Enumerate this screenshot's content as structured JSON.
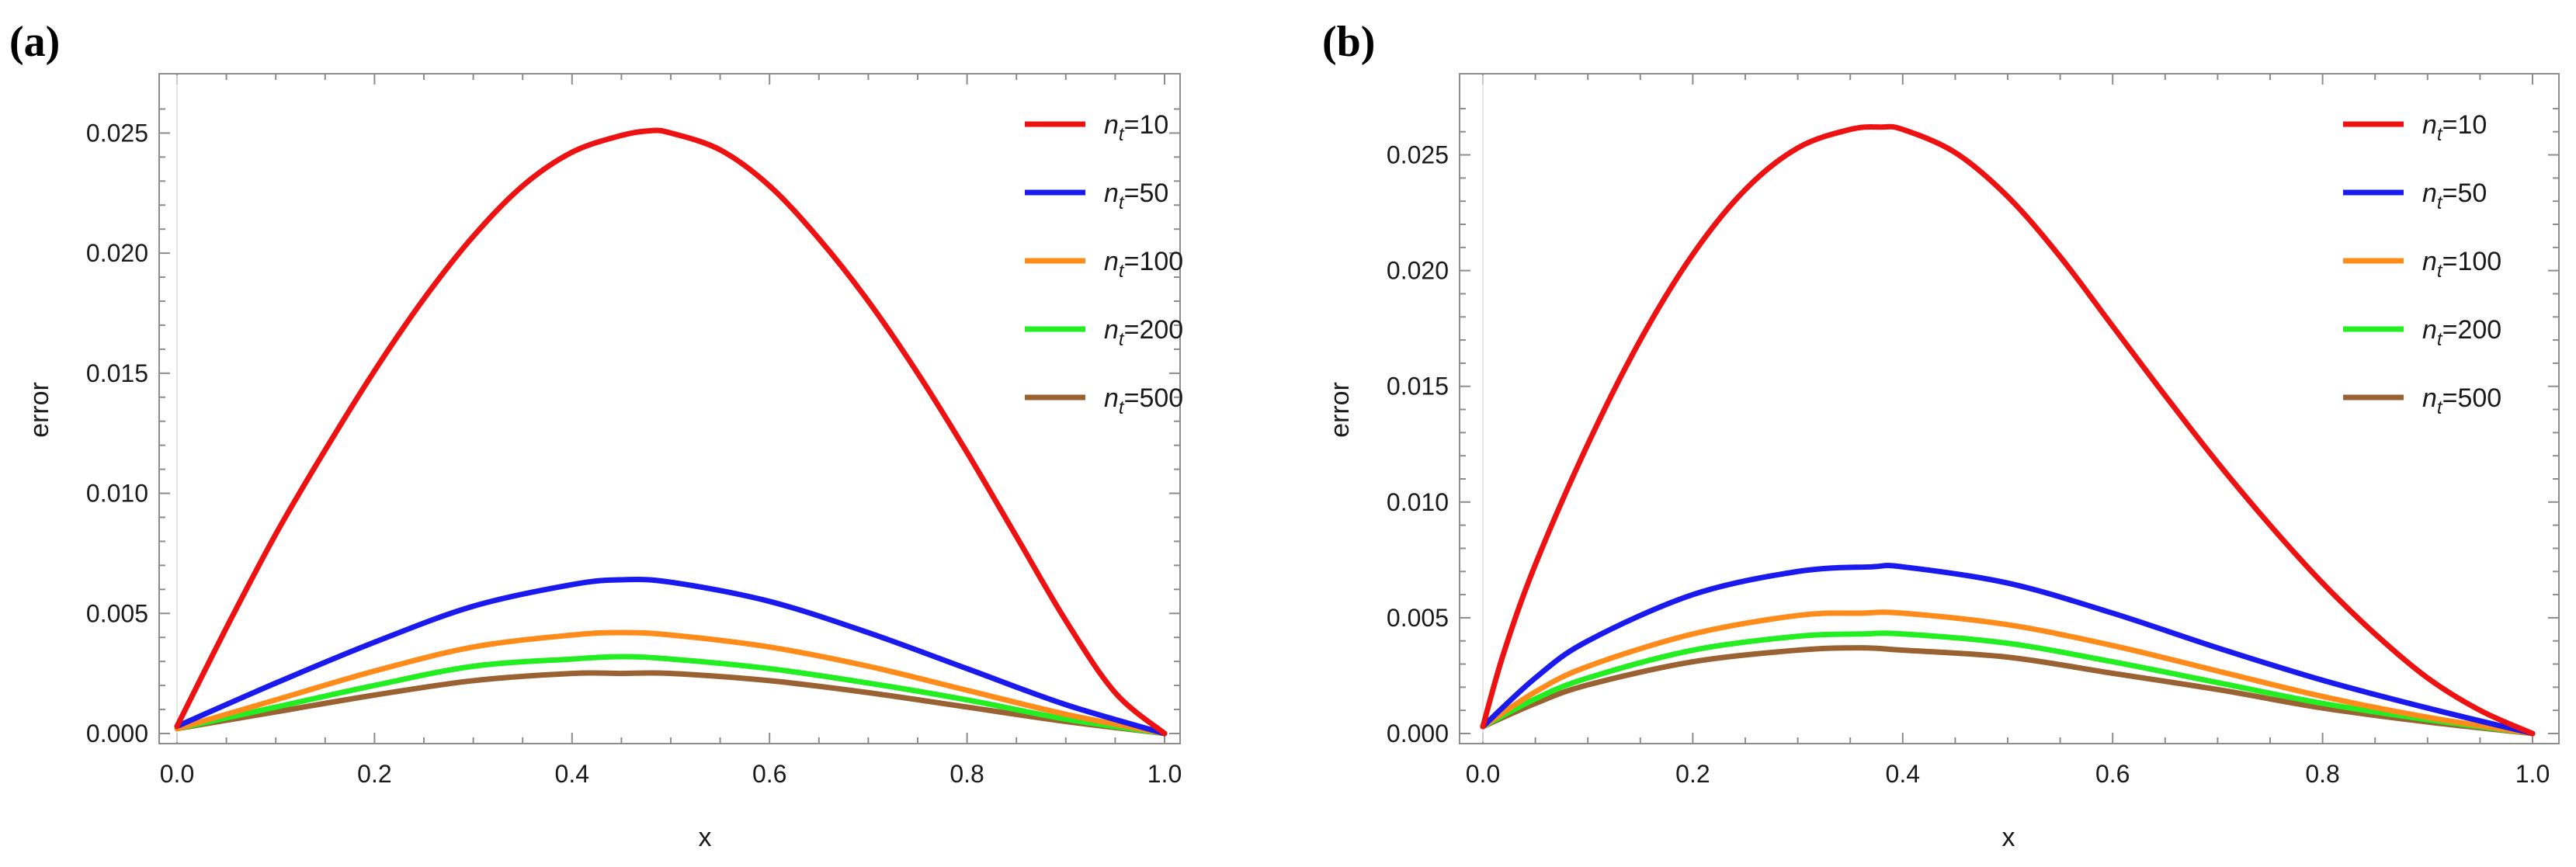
{
  "chart_data": [
    {
      "panel_label": "(a)",
      "type": "line",
      "xlabel": "x",
      "ylabel": "error",
      "xlim": [
        0.0,
        1.0
      ],
      "ylim": [
        0.0,
        0.0265
      ],
      "x_ticks": [
        0.0,
        0.2,
        0.4,
        0.6,
        0.8,
        1.0
      ],
      "x_tick_labels": [
        "0.0",
        "0.2",
        "0.4",
        "0.6",
        "0.8",
        "1.0"
      ],
      "y_ticks": [
        0.0,
        0.005,
        0.01,
        0.015,
        0.02,
        0.025
      ],
      "y_tick_labels": [
        "0.000",
        "0.005",
        "0.010",
        "0.015",
        "0.020",
        "0.025"
      ],
      "legend_position": "top-right",
      "series": [
        {
          "name": "n_t=10",
          "legend_base": "n",
          "legend_sub": "t",
          "legend_value": "=10",
          "color": "#ee1111",
          "x": [
            0.0,
            0.05,
            0.1,
            0.15,
            0.2,
            0.25,
            0.3,
            0.35,
            0.4,
            0.45,
            0.48,
            0.5,
            0.55,
            0.6,
            0.65,
            0.7,
            0.75,
            0.8,
            0.85,
            0.9,
            0.95,
            1.0
          ],
          "y": [
            0.0003,
            0.0044,
            0.0083,
            0.0118,
            0.0151,
            0.0181,
            0.0207,
            0.0228,
            0.0242,
            0.0249,
            0.0251,
            0.025,
            0.0243,
            0.0228,
            0.0206,
            0.018,
            0.015,
            0.0117,
            0.0082,
            0.0047,
            0.0017,
            0.0
          ]
        },
        {
          "name": "n_t=50",
          "legend_base": "n",
          "legend_sub": "t",
          "legend_value": "=50",
          "color": "#1a1aee",
          "x": [
            0.0,
            0.1,
            0.2,
            0.3,
            0.4,
            0.45,
            0.5,
            0.6,
            0.7,
            0.8,
            0.9,
            1.0
          ],
          "y": [
            0.0003,
            0.0021,
            0.0038,
            0.0053,
            0.0062,
            0.0064,
            0.0063,
            0.0055,
            0.0042,
            0.0027,
            0.0012,
            0.0
          ]
        },
        {
          "name": "n_t=100",
          "legend_base": "n",
          "legend_sub": "t",
          "legend_value": "=100",
          "color": "#ff8c1a",
          "x": [
            0.0,
            0.1,
            0.2,
            0.3,
            0.4,
            0.45,
            0.5,
            0.6,
            0.7,
            0.8,
            0.9,
            1.0
          ],
          "y": [
            0.0002,
            0.0014,
            0.0026,
            0.0036,
            0.0041,
            0.0042,
            0.0041,
            0.0036,
            0.0028,
            0.0018,
            0.0008,
            0.0
          ]
        },
        {
          "name": "n_t=200",
          "legend_base": "n",
          "legend_sub": "t",
          "legend_value": "=200",
          "color": "#22ee22",
          "x": [
            0.0,
            0.1,
            0.2,
            0.3,
            0.4,
            0.45,
            0.5,
            0.6,
            0.7,
            0.8,
            0.9,
            1.0
          ],
          "y": [
            0.0002,
            0.0011,
            0.002,
            0.0028,
            0.0031,
            0.0032,
            0.0031,
            0.0027,
            0.0021,
            0.0014,
            0.0006,
            0.0
          ]
        },
        {
          "name": "n_t=500",
          "legend_base": "n",
          "legend_sub": "t",
          "legend_value": "=500",
          "color": "#9a6233",
          "x": [
            0.0,
            0.1,
            0.2,
            0.3,
            0.4,
            0.45,
            0.5,
            0.6,
            0.7,
            0.8,
            0.9,
            1.0
          ],
          "y": [
            0.0002,
            0.0009,
            0.0016,
            0.0022,
            0.0025,
            0.0025,
            0.0025,
            0.0022,
            0.0017,
            0.0011,
            0.0005,
            0.0
          ]
        }
      ]
    },
    {
      "panel_label": "(b)",
      "type": "line",
      "xlabel": "x",
      "ylabel": "error",
      "xlim": [
        0.0,
        1.0
      ],
      "ylim": [
        0.0,
        0.0275
      ],
      "x_ticks": [
        0.0,
        0.2,
        0.4,
        0.6,
        0.8,
        1.0
      ],
      "x_tick_labels": [
        "0.0",
        "0.2",
        "0.4",
        "0.6",
        "0.8",
        "1.0"
      ],
      "y_ticks": [
        0.0,
        0.005,
        0.01,
        0.015,
        0.02,
        0.025
      ],
      "y_tick_labels": [
        "0.000",
        "0.005",
        "0.010",
        "0.015",
        "0.020",
        "0.025"
      ],
      "legend_position": "top-right",
      "series": [
        {
          "name": "n_t=10",
          "legend_base": "n",
          "legend_sub": "t",
          "legend_value": "=10",
          "color": "#ee1111",
          "x": [
            0.0,
            0.02,
            0.05,
            0.1,
            0.15,
            0.2,
            0.25,
            0.3,
            0.35,
            0.38,
            0.4,
            0.45,
            0.5,
            0.55,
            0.6,
            0.65,
            0.7,
            0.75,
            0.8,
            0.85,
            0.9,
            0.95,
            1.0
          ],
          "y": [
            0.0003,
            0.0035,
            0.0073,
            0.0125,
            0.017,
            0.0207,
            0.0235,
            0.0253,
            0.0261,
            0.0262,
            0.0261,
            0.0251,
            0.0232,
            0.0206,
            0.0176,
            0.0146,
            0.0117,
            0.009,
            0.0065,
            0.0043,
            0.0024,
            0.001,
            0.0
          ]
        },
        {
          "name": "n_t=50",
          "legend_base": "n",
          "legend_sub": "t",
          "legend_value": "=50",
          "color": "#1a1aee",
          "x": [
            0.0,
            0.05,
            0.1,
            0.2,
            0.3,
            0.37,
            0.4,
            0.5,
            0.6,
            0.7,
            0.8,
            0.9,
            1.0
          ],
          "y": [
            0.0003,
            0.0024,
            0.004,
            0.006,
            0.007,
            0.0072,
            0.0072,
            0.0065,
            0.0052,
            0.0037,
            0.0023,
            0.0011,
            0.0
          ]
        },
        {
          "name": "n_t=100",
          "legend_base": "n",
          "legend_sub": "t",
          "legend_value": "=100",
          "color": "#ff8c1a",
          "x": [
            0.0,
            0.05,
            0.1,
            0.2,
            0.3,
            0.36,
            0.4,
            0.5,
            0.6,
            0.7,
            0.8,
            0.9,
            1.0
          ],
          "y": [
            0.0003,
            0.0018,
            0.0029,
            0.0043,
            0.0051,
            0.0052,
            0.0052,
            0.0047,
            0.0038,
            0.0027,
            0.0016,
            0.0007,
            0.0
          ]
        },
        {
          "name": "n_t=200",
          "legend_base": "n",
          "legend_sub": "t",
          "legend_value": "=200",
          "color": "#22ee22",
          "x": [
            0.0,
            0.05,
            0.1,
            0.2,
            0.3,
            0.36,
            0.4,
            0.5,
            0.6,
            0.7,
            0.8,
            0.9,
            1.0
          ],
          "y": [
            0.0003,
            0.0015,
            0.0024,
            0.0036,
            0.0042,
            0.0043,
            0.0043,
            0.0039,
            0.0031,
            0.0022,
            0.0013,
            0.0006,
            0.0
          ]
        },
        {
          "name": "n_t=500",
          "legend_base": "n",
          "legend_sub": "t",
          "legend_value": "=500",
          "color": "#9a6233",
          "x": [
            0.0,
            0.05,
            0.1,
            0.2,
            0.3,
            0.36,
            0.4,
            0.5,
            0.6,
            0.7,
            0.8,
            0.9,
            1.0
          ],
          "y": [
            0.0003,
            0.0013,
            0.0021,
            0.0031,
            0.0036,
            0.0037,
            0.0036,
            0.0033,
            0.0026,
            0.0019,
            0.0011,
            0.0005,
            0.0
          ]
        }
      ]
    }
  ]
}
